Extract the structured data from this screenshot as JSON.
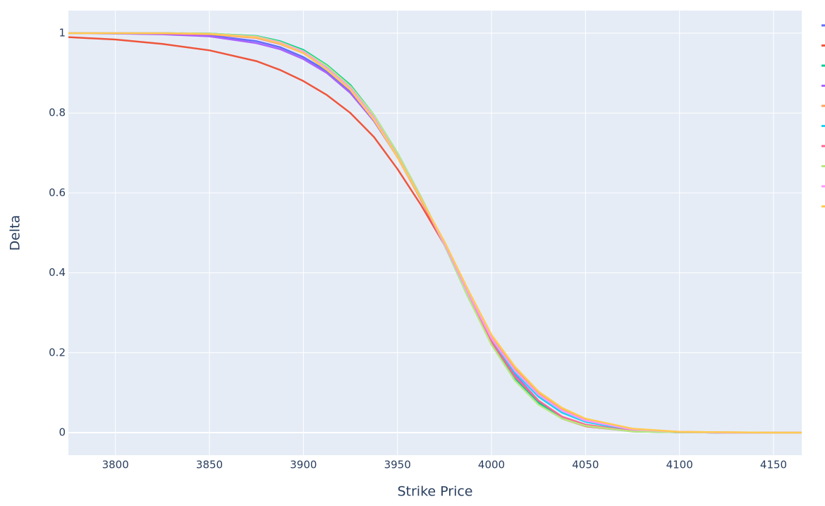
{
  "chart_data": {
    "type": "line",
    "xlabel": "Strike Price",
    "ylabel": "Delta",
    "x": [
      3775,
      3800,
      3825,
      3850,
      3875,
      3887.5,
      3900,
      3912.5,
      3925,
      3937.5,
      3950,
      3962.5,
      3975,
      3987.5,
      4000,
      4012.5,
      4025,
      4037.5,
      4050,
      4075,
      4100,
      4125,
      4150,
      4165
    ],
    "series": [
      {
        "color": "#636efa",
        "values": [
          1,
          0.999,
          0.998,
          0.994,
          0.98,
          0.965,
          0.94,
          0.905,
          0.855,
          0.785,
          0.69,
          0.585,
          0.47,
          0.345,
          0.228,
          0.14,
          0.078,
          0.038,
          0.018,
          0.004,
          0.001,
          0,
          0,
          0
        ]
      },
      {
        "color": "#EF553B",
        "values": [
          0.99,
          0.984,
          0.973,
          0.957,
          0.93,
          0.908,
          0.88,
          0.845,
          0.8,
          0.74,
          0.66,
          0.57,
          0.47,
          0.35,
          0.23,
          0.14,
          0.075,
          0.035,
          0.016,
          0.003,
          0.001,
          0,
          0,
          0
        ]
      },
      {
        "color": "#00cc96",
        "values": [
          1,
          1,
          1,
          0.999,
          0.993,
          0.98,
          0.958,
          0.92,
          0.87,
          0.795,
          0.7,
          0.59,
          0.47,
          0.34,
          0.225,
          0.135,
          0.075,
          0.037,
          0.018,
          0.003,
          0.001,
          0,
          0,
          0
        ]
      },
      {
        "color": "#ab63fa",
        "values": [
          1,
          0.999,
          0.997,
          0.992,
          0.975,
          0.96,
          0.935,
          0.9,
          0.85,
          0.78,
          0.69,
          0.585,
          0.47,
          0.345,
          0.23,
          0.145,
          0.08,
          0.04,
          0.02,
          0.004,
          0.001,
          0,
          0,
          0
        ]
      },
      {
        "color": "#FFA15A",
        "values": [
          1,
          1,
          1,
          0.998,
          0.99,
          0.975,
          0.952,
          0.91,
          0.86,
          0.785,
          0.69,
          0.585,
          0.475,
          0.355,
          0.24,
          0.16,
          0.1,
          0.06,
          0.033,
          0.009,
          0.002,
          0.001,
          0,
          0
        ]
      },
      {
        "color": "#19d3f3",
        "values": [
          1,
          1,
          1,
          0.998,
          0.99,
          0.977,
          0.955,
          0.915,
          0.865,
          0.79,
          0.695,
          0.585,
          0.47,
          0.345,
          0.232,
          0.15,
          0.09,
          0.05,
          0.027,
          0.006,
          0.001,
          0,
          0,
          0
        ]
      },
      {
        "color": "#FF6692",
        "values": [
          1,
          1,
          0.999,
          0.997,
          0.988,
          0.973,
          0.95,
          0.91,
          0.86,
          0.785,
          0.69,
          0.583,
          0.47,
          0.345,
          0.228,
          0.14,
          0.08,
          0.04,
          0.02,
          0.004,
          0.001,
          0,
          0,
          0
        ]
      },
      {
        "color": "#B6E880",
        "values": [
          1,
          1,
          1,
          0.999,
          0.992,
          0.978,
          0.955,
          0.918,
          0.867,
          0.795,
          0.7,
          0.59,
          0.47,
          0.34,
          0.22,
          0.13,
          0.07,
          0.035,
          0.017,
          0.003,
          0.001,
          0,
          0,
          0
        ]
      },
      {
        "color": "#FF97FF",
        "values": [
          1,
          1,
          1,
          0.998,
          0.99,
          0.976,
          0.953,
          0.912,
          0.862,
          0.788,
          0.692,
          0.586,
          0.473,
          0.35,
          0.236,
          0.155,
          0.095,
          0.055,
          0.03,
          0.008,
          0.002,
          0,
          0,
          0
        ]
      },
      {
        "color": "#FECB52",
        "values": [
          1,
          1,
          1,
          0.998,
          0.989,
          0.974,
          0.95,
          0.908,
          0.858,
          0.783,
          0.69,
          0.585,
          0.478,
          0.358,
          0.245,
          0.165,
          0.103,
          0.062,
          0.035,
          0.01,
          0.002,
          0.001,
          0,
          0
        ]
      }
    ],
    "xlim": [
      3775,
      4165
    ],
    "xticks": [
      3800,
      3850,
      3900,
      3950,
      4000,
      4050,
      4100,
      4150
    ],
    "ylim": [
      -0.0565,
      1.0565
    ],
    "yticks": [
      0,
      0.2,
      0.4,
      0.6,
      0.8,
      1
    ],
    "grid": true,
    "legend": "right"
  }
}
